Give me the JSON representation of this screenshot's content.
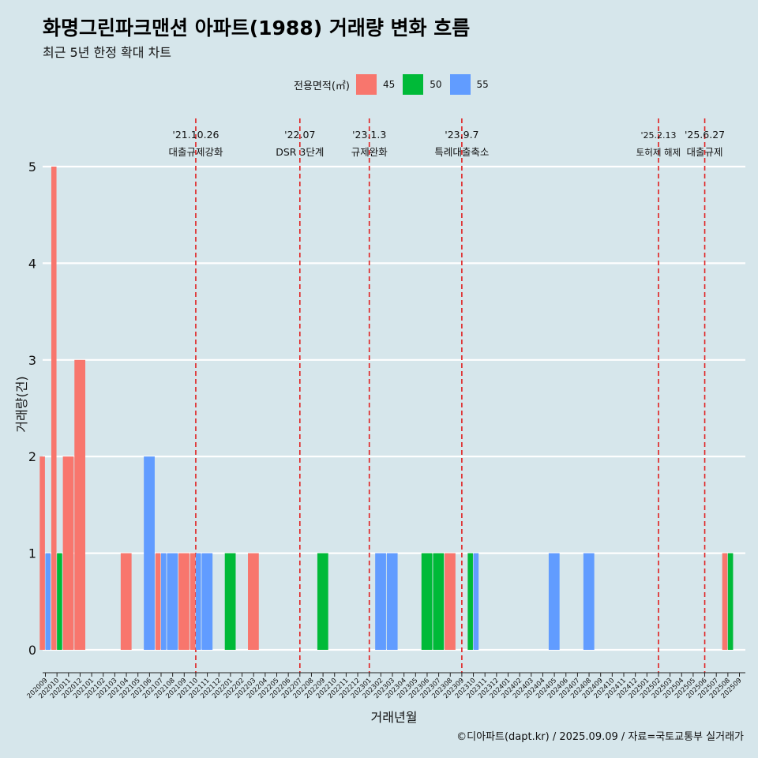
{
  "title": "화명그린파크맨션 아파트(1988) 거래량 변화 흐름",
  "subtitle": "최근 5년 한정 확대 차트",
  "caption": "©디아파트(dapt.kr) / 2025.09.09 / 자료=국토교통부 실거래가",
  "legend": {
    "title": "전용면적(㎡)",
    "items": [
      {
        "label": "45",
        "color": "#f8766d"
      },
      {
        "label": "50",
        "color": "#00ba38"
      },
      {
        "label": "55",
        "color": "#619cff"
      }
    ]
  },
  "chart_data": {
    "type": "bar",
    "xlabel": "거래년월",
    "ylabel": "거래량(건)",
    "ylim": [
      0,
      5
    ],
    "yticks": [
      0,
      1,
      2,
      3,
      4,
      5
    ],
    "categories": [
      "202009",
      "202010",
      "202011",
      "202012",
      "202101",
      "202102",
      "202103",
      "202104",
      "202105",
      "202106",
      "202107",
      "202108",
      "202109",
      "202110",
      "202111",
      "202112",
      "202201",
      "202202",
      "202203",
      "202204",
      "202205",
      "202206",
      "202207",
      "202208",
      "202209",
      "202210",
      "202211",
      "202212",
      "202301",
      "202302",
      "202303",
      "202304",
      "202305",
      "202306",
      "202307",
      "202308",
      "202309",
      "202310",
      "202311",
      "202312",
      "202401",
      "202402",
      "202403",
      "202404",
      "202405",
      "202406",
      "202407",
      "202408",
      "202409",
      "202410",
      "202411",
      "202412",
      "202501",
      "202502",
      "202503",
      "202504",
      "202505",
      "202506",
      "202507",
      "202508",
      "202509"
    ],
    "series": [
      {
        "name": "45",
        "color": "#f8766d",
        "values": [
          2,
          5,
          2,
          3,
          0,
          0,
          0,
          1,
          0,
          0,
          1,
          0,
          1,
          1,
          0,
          0,
          0,
          0,
          1,
          0,
          0,
          0,
          0,
          0,
          0,
          0,
          0,
          0,
          0,
          0,
          0,
          0,
          0,
          0,
          0,
          1,
          0,
          0,
          0,
          0,
          0,
          0,
          0,
          0,
          0,
          0,
          0,
          0,
          0,
          0,
          0,
          0,
          0,
          0,
          0,
          0,
          0,
          0,
          0,
          1,
          0
        ]
      },
      {
        "name": "50",
        "color": "#00ba38",
        "values": [
          0,
          1,
          0,
          0,
          0,
          0,
          0,
          0,
          0,
          0,
          0,
          0,
          0,
          0,
          0,
          0,
          1,
          0,
          0,
          0,
          0,
          0,
          0,
          0,
          1,
          0,
          0,
          0,
          0,
          0,
          0,
          0,
          0,
          1,
          1,
          0,
          0,
          1,
          0,
          0,
          0,
          0,
          0,
          0,
          0,
          0,
          0,
          0,
          0,
          0,
          0,
          0,
          0,
          0,
          0,
          0,
          0,
          0,
          0,
          1,
          0
        ]
      },
      {
        "name": "55",
        "color": "#619cff",
        "values": [
          1,
          0,
          0,
          0,
          0,
          0,
          0,
          0,
          0,
          2,
          1,
          1,
          0,
          1,
          1,
          0,
          0,
          0,
          0,
          0,
          0,
          0,
          0,
          0,
          0,
          0,
          0,
          0,
          0,
          1,
          1,
          0,
          0,
          0,
          0,
          0,
          0,
          1,
          0,
          0,
          0,
          0,
          0,
          0,
          1,
          0,
          0,
          1,
          0,
          0,
          0,
          0,
          0,
          0,
          0,
          0,
          0,
          0,
          0,
          0,
          0
        ]
      }
    ],
    "events": [
      {
        "month": "202110",
        "date": "'21.10.26",
        "label": "대출규제강화"
      },
      {
        "month": "202207",
        "date": "'22.07",
        "label": "DSR 3단계"
      },
      {
        "month": "202301",
        "date": "'23.1.3",
        "label": "규제완화"
      },
      {
        "month": "202309",
        "date": "'23.9.7",
        "label": "특례대출축소"
      },
      {
        "month": "202502",
        "date": "'25.2.13",
        "label": "토허제 해제"
      },
      {
        "month": "202506",
        "date": "'25.6.27",
        "label": "대출규제"
      }
    ]
  }
}
